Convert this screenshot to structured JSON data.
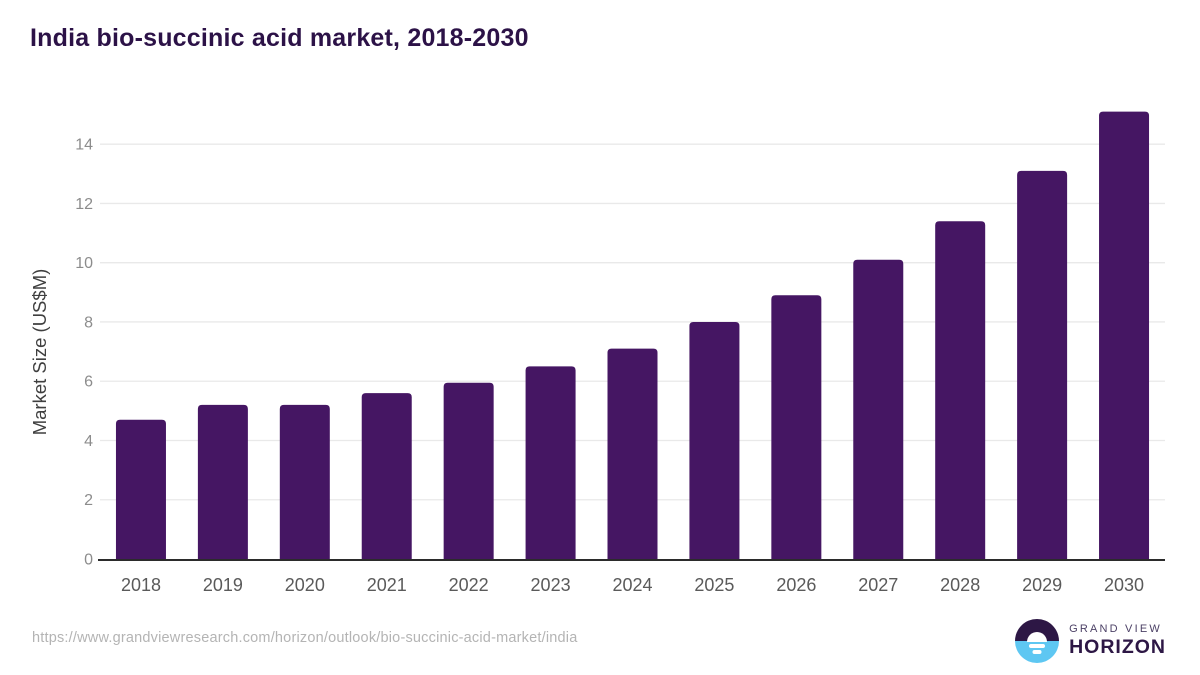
{
  "title": "India bio-succinic acid market, 2018-2030",
  "source_url": "https://www.grandviewresearch.com/horizon/outlook/bio-succinic-acid-market/india",
  "logo": {
    "line1": "GRAND VIEW",
    "line2": "HORIZON"
  },
  "colors": {
    "bar": "#451663",
    "title": "#2c1247",
    "axis_line": "#2b2b2b",
    "grid": "#e9e9e9",
    "y_tick_label": "#8c8c8c",
    "x_tick_label": "#5a5a5a",
    "y_axis_title": "#3f3f3f",
    "url": "#b4b4b4",
    "logo_dark": "#2d1745",
    "logo_blue": "#5ec7f2",
    "logo_grand_view_text": "#4c4166",
    "background": "#ffffff"
  },
  "chart_data": {
    "type": "bar",
    "title": "India bio-succinic acid market, 2018-2030",
    "categories": [
      "2018",
      "2019",
      "2020",
      "2021",
      "2022",
      "2023",
      "2024",
      "2025",
      "2026",
      "2027",
      "2028",
      "2029",
      "2030"
    ],
    "values": [
      4.7,
      5.2,
      5.2,
      5.6,
      5.95,
      6.5,
      7.1,
      8.0,
      8.9,
      10.1,
      11.4,
      13.1,
      15.1
    ],
    "xlabel": "",
    "ylabel": "Market Size (US$M)",
    "ylim": [
      0,
      15.5
    ],
    "yticks": [
      0,
      2,
      4,
      6,
      8,
      10,
      12,
      14
    ],
    "grid": true,
    "legend": false,
    "bar_color": "#451663"
  }
}
